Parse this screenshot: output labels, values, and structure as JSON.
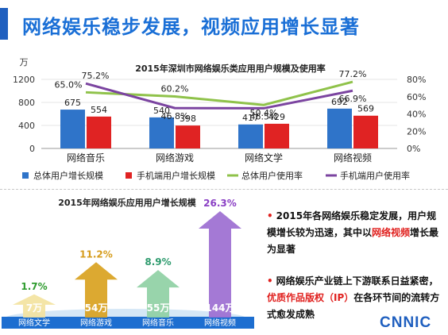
{
  "header": {
    "title": "网络娱乐稳步发展，视频应用增长显著"
  },
  "chart_data": [
    {
      "type": "bar",
      "title": "2015年深圳市网络娱乐类应用用户规模及使用率",
      "ylabel": "万",
      "ylim": [
        0,
        1200
      ],
      "yticks": [
        "0",
        "400",
        "800",
        "1200"
      ],
      "y2lim": [
        0,
        80
      ],
      "y2ticks": [
        "0%",
        "20%",
        "40%",
        "60%",
        "80%"
      ],
      "categories": [
        "网络音乐",
        "网络游戏",
        "网络文学",
        "网络视频"
      ],
      "series": [
        {
          "name": "总体用户增长规模",
          "kind": "bar",
          "color": "#2f74c9",
          "values": [
            675,
            540,
            417,
            692
          ],
          "labels": [
            "675",
            "540",
            "417",
            "692"
          ]
        },
        {
          "name": "手机端用户增长规模",
          "kind": "bar",
          "color": "#e02323",
          "values": [
            554,
            398,
            429,
            569
          ],
          "labels": [
            "554",
            "398",
            "429",
            "569"
          ]
        },
        {
          "name": "总体用户使用率",
          "kind": "line",
          "axis": "right",
          "color": "#8fc24a",
          "values": [
            65.0,
            60.2,
            50.4,
            77.2
          ],
          "labels": [
            "65.0%",
            "60.2%",
            "50.4%",
            "77.2%"
          ]
        },
        {
          "name": "手机端用户使用率",
          "kind": "line",
          "axis": "right",
          "color": "#7b44a0",
          "values": [
            75.2,
            46.8,
            46.5,
            66.9
          ],
          "labels": [
            "75.2%",
            "46.8%",
            "46.5%",
            "66.9%"
          ]
        }
      ],
      "legend_position": "bottom"
    },
    {
      "type": "bar",
      "title": "2015年网络娱乐应用用户增长规模",
      "categories": [
        "网络文学",
        "网络游戏",
        "网络音乐",
        "网络视频"
      ],
      "values": [
        7,
        54,
        55,
        144
      ],
      "value_labels": [
        "7万",
        "54万",
        "55万",
        "144万"
      ],
      "growth_rates": [
        1.7,
        11.2,
        8.9,
        26.3
      ],
      "growth_labels": [
        "1.7%",
        "11.2%",
        "8.9%",
        "26.3%"
      ],
      "arrow_colors": [
        "#f3e3a0",
        "#d9a21f",
        "#8fd0a4",
        "#9c6ed1"
      ],
      "rate_colors": [
        "#2e9b2e",
        "#d69c1c",
        "#2e9b6e",
        "#8a3fc4"
      ]
    }
  ],
  "notes": {
    "note1_prefix": "2015年各网络娱乐稳定发展，用户规模增长较为迅速，其中以",
    "note1_highlight": "网络视频",
    "note1_suffix": "增长最为显著",
    "note2_prefix": "网络娱乐产业链上下游联系日益紧密，",
    "note2_highlight": "优质作品版权（IP）",
    "note2_suffix": "在各环节间的流转方式愈发成熟",
    "bullet": "•"
  },
  "logo": {
    "text": "CNNIC"
  }
}
